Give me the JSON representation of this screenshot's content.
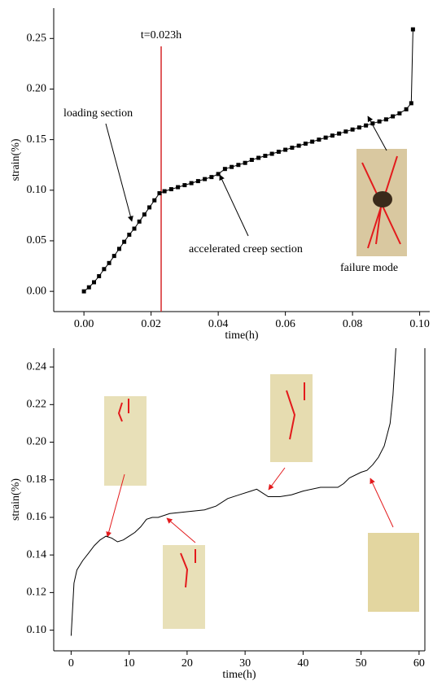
{
  "chart_data": [
    {
      "type": "line",
      "marker": "square",
      "color": "#000000",
      "xlabel": "time(h)",
      "ylabel": "strain(%)",
      "x": [
        0,
        0.0015,
        0.003,
        0.0045,
        0.006,
        0.0075,
        0.009,
        0.0105,
        0.012,
        0.0135,
        0.015,
        0.0165,
        0.018,
        0.0195,
        0.021,
        0.0225,
        0.024,
        0.026,
        0.028,
        0.03,
        0.032,
        0.034,
        0.036,
        0.038,
        0.04,
        0.042,
        0.044,
        0.046,
        0.048,
        0.05,
        0.052,
        0.054,
        0.056,
        0.058,
        0.06,
        0.062,
        0.064,
        0.066,
        0.068,
        0.07,
        0.072,
        0.074,
        0.076,
        0.078,
        0.08,
        0.082,
        0.084,
        0.086,
        0.088,
        0.09,
        0.092,
        0.094,
        0.096,
        0.0975,
        0.098
      ],
      "values": [
        0,
        0.004,
        0.009,
        0.015,
        0.022,
        0.028,
        0.035,
        0.042,
        0.049,
        0.056,
        0.062,
        0.069,
        0.076,
        0.083,
        0.09,
        0.097,
        0.099,
        0.101,
        0.103,
        0.105,
        0.107,
        0.109,
        0.111,
        0.113,
        0.116,
        0.121,
        0.123,
        0.125,
        0.127,
        0.13,
        0.132,
        0.134,
        0.136,
        0.138,
        0.14,
        0.142,
        0.144,
        0.146,
        0.148,
        0.15,
        0.152,
        0.154,
        0.156,
        0.158,
        0.16,
        0.162,
        0.164,
        0.166,
        0.168,
        0.17,
        0.173,
        0.176,
        0.18,
        0.186,
        0.259
      ],
      "xlim": [
        -0.009,
        0.103
      ],
      "ylim": [
        -0.02,
        0.28
      ],
      "xticks": [
        {
          "value": 0,
          "label": "0.00"
        },
        {
          "value": 0.02,
          "label": "0.02"
        },
        {
          "value": 0.04,
          "label": "0.04"
        },
        {
          "value": 0.06,
          "label": "0.06"
        },
        {
          "value": 0.08,
          "label": "0.08"
        },
        {
          "value": 0.1,
          "label": "0.10"
        }
      ],
      "yticks": [
        {
          "value": 0,
          "label": "0.00"
        },
        {
          "value": 0.05,
          "label": "0.05"
        },
        {
          "value": 0.1,
          "label": "0.10"
        },
        {
          "value": 0.15,
          "label": "0.15"
        },
        {
          "value": 0.2,
          "label": "0.20"
        },
        {
          "value": 0.25,
          "label": "0.25"
        }
      ],
      "vline": {
        "x": 0.023,
        "label": "t=0.023h",
        "color": "#d62728"
      },
      "annotations": [
        "loading section",
        "accelerated creep section",
        "failure mode"
      ]
    },
    {
      "type": "line",
      "color": "#000000",
      "xlabel": "time(h)",
      "ylabel": "strain(%)",
      "x": [
        0,
        0.5,
        1,
        2,
        3,
        4,
        5,
        6,
        7,
        8,
        9,
        10,
        11,
        12,
        13,
        14,
        15,
        17,
        20,
        23,
        25,
        27,
        29,
        31,
        32,
        33,
        34,
        36,
        38,
        40,
        43,
        46,
        47,
        48,
        50,
        51,
        52,
        53,
        54,
        55,
        55.5,
        56
      ],
      "values": [
        0.097,
        0.125,
        0.132,
        0.137,
        0.141,
        0.145,
        0.148,
        0.15,
        0.149,
        0.147,
        0.148,
        0.15,
        0.152,
        0.155,
        0.159,
        0.16,
        0.16,
        0.162,
        0.163,
        0.164,
        0.166,
        0.17,
        0.172,
        0.174,
        0.175,
        0.173,
        0.171,
        0.171,
        0.172,
        0.174,
        0.176,
        0.176,
        0.178,
        0.181,
        0.184,
        0.185,
        0.188,
        0.192,
        0.198,
        0.21,
        0.225,
        0.25
      ],
      "xlim": [
        -3,
        61
      ],
      "ylim": [
        0.089,
        0.25
      ],
      "xticks": [
        0,
        10,
        20,
        30,
        40,
        50,
        60
      ],
      "yticks": [
        {
          "value": 0.1,
          "label": "0.10"
        },
        {
          "value": 0.12,
          "label": "0.12"
        },
        {
          "value": 0.14,
          "label": "0.14"
        },
        {
          "value": 0.16,
          "label": "0.16"
        },
        {
          "value": 0.18,
          "label": "0.18"
        },
        {
          "value": 0.2,
          "label": "0.20"
        },
        {
          "value": 0.22,
          "label": "0.22"
        },
        {
          "value": 0.24,
          "label": "0.24"
        }
      ]
    }
  ]
}
